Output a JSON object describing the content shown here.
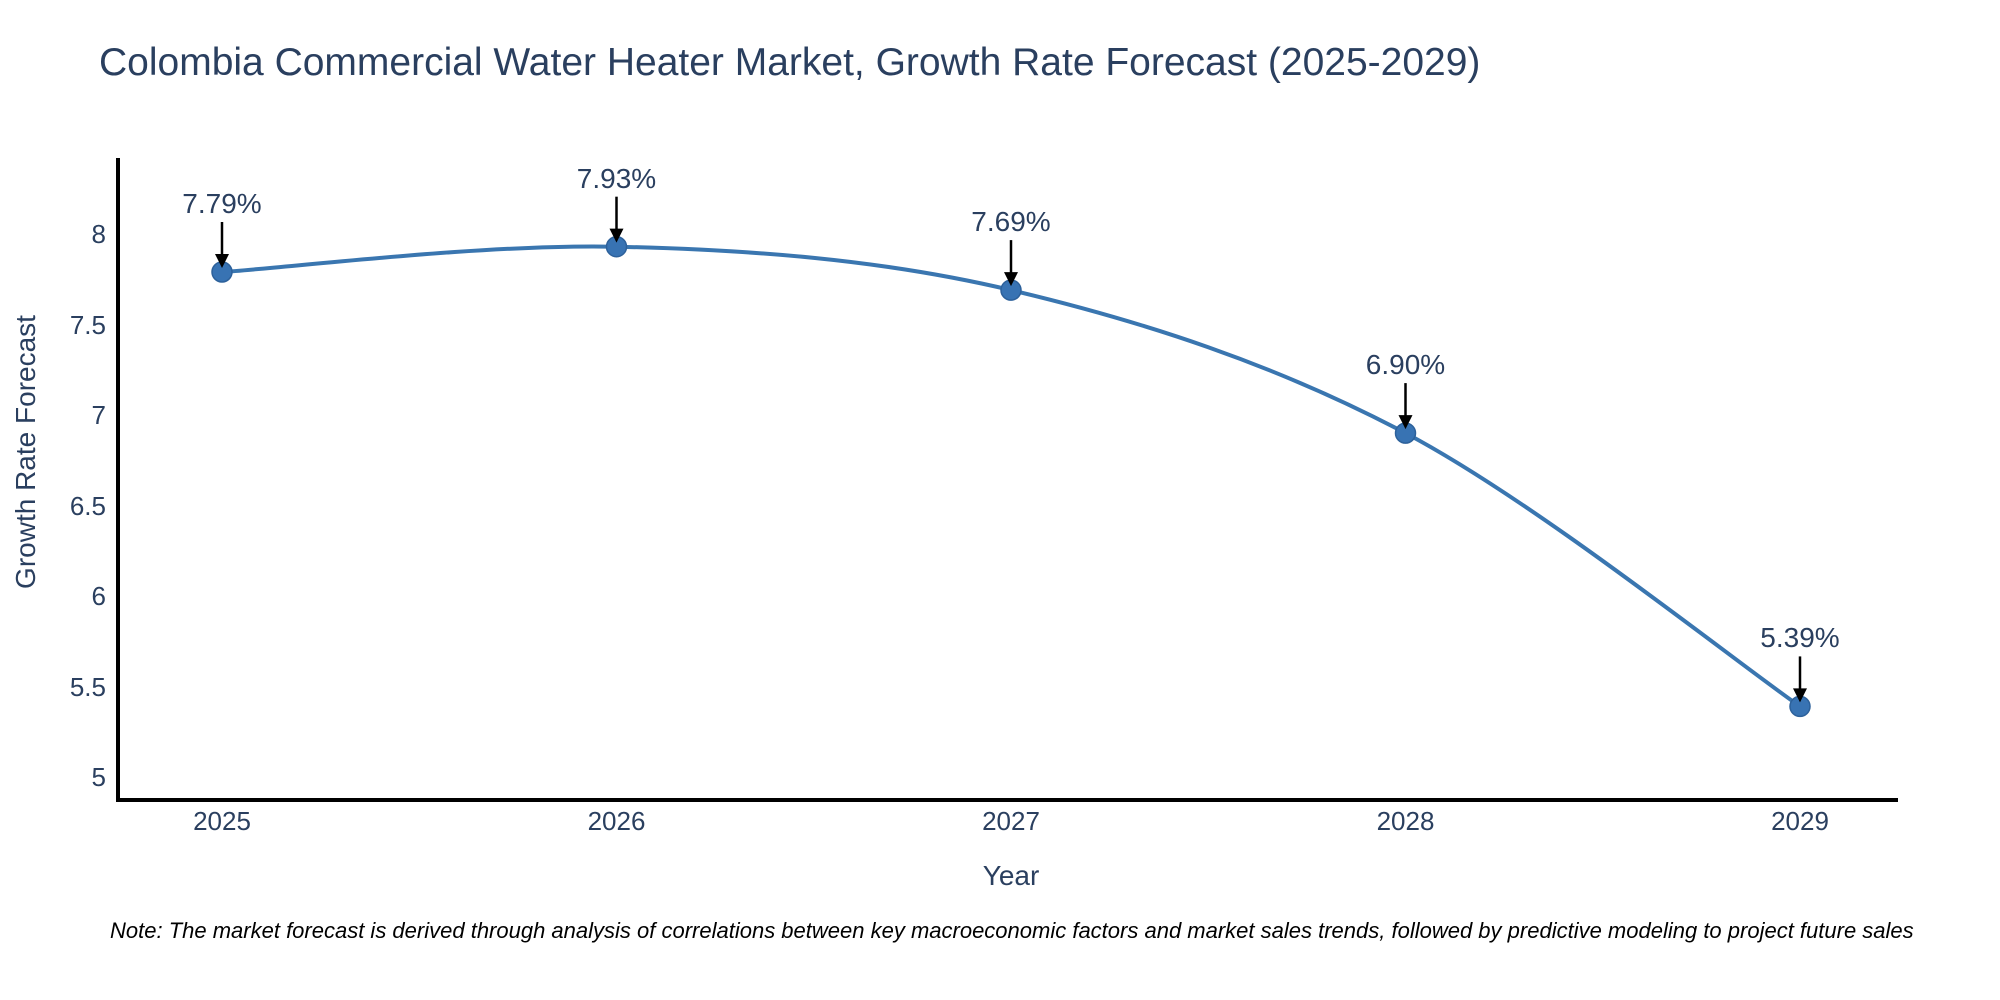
{
  "chart_data": {
    "type": "line",
    "title": "Colombia Commercial Water Heater Market, Growth Rate Forecast (2025-2029)",
    "xlabel": "Year",
    "ylabel": "Growth Rate Forecast",
    "categories": [
      "2025",
      "2026",
      "2027",
      "2028",
      "2029"
    ],
    "series": [
      {
        "name": "Growth Rate Forecast",
        "values": [
          7.79,
          7.93,
          7.69,
          6.9,
          5.39
        ],
        "point_labels": [
          "7.79%",
          "7.93%",
          "7.69%",
          "6.90%",
          "5.39%"
        ]
      }
    ],
    "ytick_values": [
      5,
      5.5,
      6,
      6.5,
      7,
      7.5,
      8
    ],
    "ytick_labels": [
      "5",
      "5.5",
      "6",
      "6.5",
      "7",
      "7.5",
      "8"
    ],
    "ylim": [
      4.9,
      8.42
    ],
    "grid": false,
    "legend": "none",
    "line_shape": "spline",
    "colors": {
      "line": "#3a76b0",
      "marker_fill": "#3873b3",
      "marker_stroke": "#2d619b",
      "axis_line": "#000000",
      "annotation_arrow": "#000000",
      "annotation_text": "#2a3f5f",
      "tick_text": "#2a3f5f",
      "title_text": "#2a3f5f"
    }
  },
  "note": {
    "text": "Note: The market forecast is derived through analysis of correlations between key macroeconomic factors and market sales trends, followed by predictive modeling to project future sales"
  }
}
